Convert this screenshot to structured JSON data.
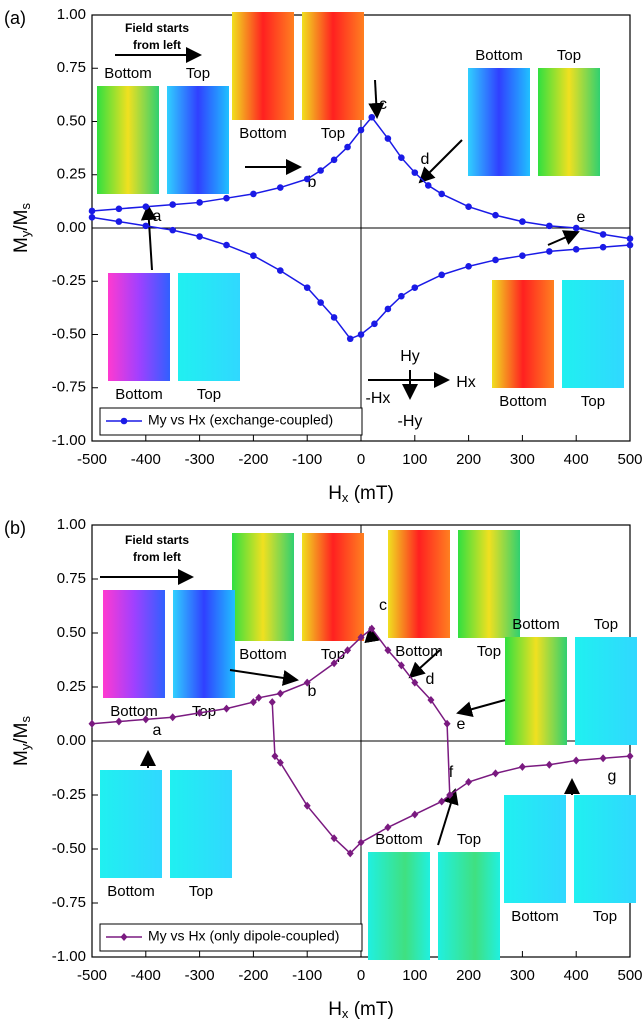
{
  "chart_data": [
    {
      "type": "line",
      "panel": "(a)",
      "xlabel": [
        "H",
        "x",
        " (mT)"
      ],
      "ylabel": [
        "M",
        "y",
        "/M",
        "s"
      ],
      "xlim": [
        -500,
        500
      ],
      "xticks": [
        -500,
        -400,
        -300,
        -200,
        -100,
        0,
        100,
        200,
        300,
        400,
        500
      ],
      "ylim": [
        -1,
        1
      ],
      "yticks": [
        {
          "value": -1,
          "label": "-1.00"
        },
        {
          "value": -0.75,
          "label": "-0.75"
        },
        {
          "value": -0.5,
          "label": "-0.50"
        },
        {
          "value": -0.25,
          "label": "-0.25"
        },
        {
          "value": 0,
          "label": "0.00"
        },
        {
          "value": 0.25,
          "label": "0.25"
        },
        {
          "value": 0.5,
          "label": "0.50"
        },
        {
          "value": 0.75,
          "label": "0.75"
        },
        {
          "value": 1,
          "label": "1.00"
        }
      ],
      "marker": "circle",
      "series": [
        {
          "name": "My vs Hx (exchange-coupled)",
          "color": "#1a1ae6",
          "x": [
            -500,
            -450,
            -400,
            -350,
            -300,
            -250,
            -200,
            -150,
            -100,
            -75,
            -50,
            -25,
            0,
            20,
            50,
            75,
            100,
            125,
            150,
            200,
            250,
            300,
            350,
            400,
            450,
            500,
            500,
            450,
            400,
            350,
            300,
            250,
            200,
            150,
            100,
            75,
            50,
            25,
            0,
            -20,
            -50,
            -75,
            -100,
            -150,
            -200,
            -250,
            -300,
            -350,
            -400,
            -450,
            -500
          ],
          "values": [
            0.08,
            0.09,
            0.1,
            0.11,
            0.12,
            0.14,
            0.16,
            0.19,
            0.23,
            0.27,
            0.32,
            0.38,
            0.46,
            0.52,
            0.42,
            0.33,
            0.26,
            0.2,
            0.16,
            0.1,
            0.06,
            0.03,
            0.01,
            0.0,
            -0.03,
            -0.05,
            -0.08,
            -0.09,
            -0.1,
            -0.11,
            -0.13,
            -0.15,
            -0.18,
            -0.22,
            -0.28,
            -0.32,
            -0.38,
            -0.45,
            -0.5,
            -0.52,
            -0.42,
            -0.35,
            -0.28,
            -0.2,
            -0.13,
            -0.08,
            -0.04,
            -0.01,
            0.01,
            0.03,
            0.05
          ]
        }
      ],
      "annotations": [
        "Field starts",
        "from left",
        "a",
        "b",
        "c",
        "d",
        "e",
        "Hy",
        "Hx",
        "-Hx",
        "-Hy"
      ],
      "insets": [
        [
          "Bottom",
          "Top"
        ],
        [
          "Bottom",
          "Top"
        ],
        [
          "Bottom",
          "Top"
        ],
        [
          "Bottom",
          "Top"
        ],
        [
          "Bottom",
          "Top"
        ]
      ]
    },
    {
      "type": "line",
      "panel": "(b)",
      "xlabel": [
        "H",
        "x",
        " (mT)"
      ],
      "ylabel": [
        "M",
        "y",
        "/M",
        "s"
      ],
      "xlim": [
        -500,
        500
      ],
      "xticks": [
        -500,
        -400,
        -300,
        -200,
        -100,
        0,
        100,
        200,
        300,
        400,
        500
      ],
      "ylim": [
        -1,
        1
      ],
      "yticks": [
        {
          "value": -1,
          "label": "-1.00"
        },
        {
          "value": -0.75,
          "label": "-0.75"
        },
        {
          "value": -0.5,
          "label": "-0.50"
        },
        {
          "value": -0.25,
          "label": "-0.25"
        },
        {
          "value": 0,
          "label": "0.00"
        },
        {
          "value": 0.25,
          "label": "0.25"
        },
        {
          "value": 0.5,
          "label": "0.50"
        },
        {
          "value": 0.75,
          "label": "0.75"
        },
        {
          "value": 1,
          "label": "1.00"
        }
      ],
      "marker": "diamond",
      "series": [
        {
          "name": "My vs Hx (only dipole-coupled)",
          "color": "#7a1a80",
          "x": [
            -500,
            -450,
            -400,
            -350,
            -300,
            -250,
            -200,
            -190,
            -150,
            -100,
            -50,
            -25,
            0,
            20,
            50,
            75,
            100,
            130,
            160,
            165,
            200,
            250,
            300,
            350,
            400,
            450,
            500,
            null,
            165,
            150,
            100,
            50,
            0,
            -20,
            -50,
            -100,
            -150,
            -160,
            -165
          ],
          "values": [
            0.08,
            0.09,
            0.1,
            0.11,
            0.13,
            0.15,
            0.18,
            0.2,
            0.22,
            0.27,
            0.36,
            0.42,
            0.48,
            0.52,
            0.42,
            0.35,
            0.27,
            0.19,
            0.08,
            -0.25,
            -0.19,
            -0.15,
            -0.12,
            -0.11,
            -0.09,
            -0.08,
            -0.07,
            null,
            -0.25,
            -0.28,
            -0.34,
            -0.4,
            -0.47,
            -0.52,
            -0.45,
            -0.3,
            -0.1,
            -0.07,
            0.18
          ]
        }
      ],
      "annotations": [
        "Field starts",
        "from left",
        "a",
        "b",
        "c",
        "d",
        "e",
        "f",
        "g"
      ],
      "insets": [
        [
          "Bottom",
          "Top"
        ],
        [
          "Bottom",
          "Top"
        ],
        [
          "Bottom",
          "Top"
        ],
        [
          "Bottom",
          "Top"
        ],
        [
          "Bottom",
          "Top"
        ],
        [
          "Bottom",
          "Top"
        ],
        [
          "Bottom",
          "Top"
        ]
      ]
    }
  ]
}
